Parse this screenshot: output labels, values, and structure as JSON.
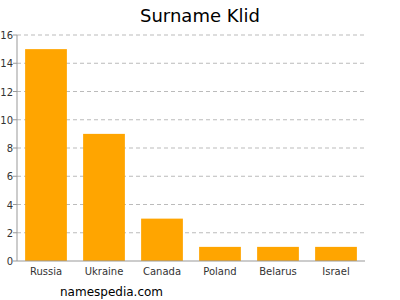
{
  "chart_data": {
    "type": "bar",
    "title": "Surname Klid",
    "categories": [
      "Russia",
      "Ukraine",
      "Canada",
      "Poland",
      "Belarus",
      "Israel"
    ],
    "values": [
      15,
      9,
      3,
      1,
      1,
      1
    ],
    "color": "#ffa500",
    "ylim": [
      0,
      16
    ],
    "yticks": [
      0,
      2,
      4,
      6,
      8,
      10,
      12,
      14,
      16
    ],
    "grid": true,
    "annotations": [
      "namespedia.com"
    ]
  }
}
